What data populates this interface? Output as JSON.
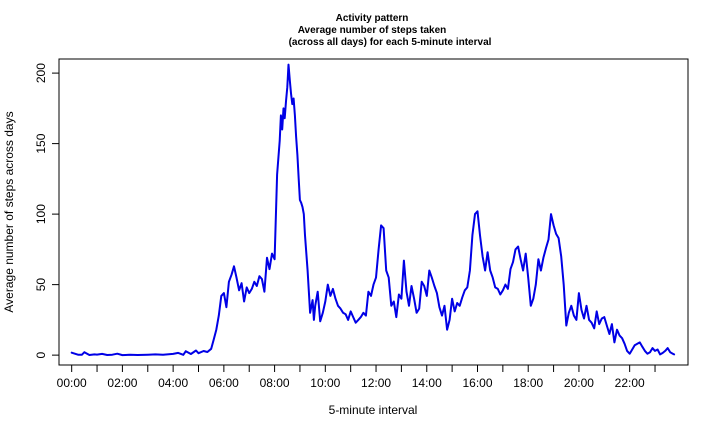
{
  "chart_data": {
    "type": "line",
    "title_lines": [
      "Activity pattern",
      "Average number of steps taken",
      "(across all days) for each 5-minute interval"
    ],
    "xlabel": "5-minute interval",
    "ylabel": "Average number of steps across days",
    "xlim": [
      -0.5,
      24.3
    ],
    "ylim": [
      -7,
      210
    ],
    "x_ticks": [
      "00:00",
      "02:00",
      "04:00",
      "06:00",
      "08:00",
      "10:00",
      "12:00",
      "14:00",
      "16:00",
      "18:00",
      "20:00",
      "22:00"
    ],
    "x_tick_values": [
      0,
      2,
      4,
      6,
      8,
      10,
      12,
      14,
      16,
      18,
      20,
      22
    ],
    "x_minor_tick_values": [
      1,
      3,
      5,
      7,
      9,
      11,
      13,
      15,
      17,
      19,
      21,
      23
    ],
    "y_ticks": [
      "0",
      "50",
      "100",
      "150",
      "200"
    ],
    "y_tick_values": [
      0,
      50,
      100,
      150,
      200
    ],
    "line_color": "#0000e6",
    "series": [
      {
        "x_unit": "hours since 00:00",
        "x": [
          0.0,
          0.25,
          0.4,
          0.5,
          0.7,
          0.9,
          1.0,
          1.2,
          1.4,
          1.6,
          1.8,
          2.0,
          2.3,
          2.6,
          3.0,
          3.3,
          3.6,
          4.0,
          4.2,
          4.4,
          4.5,
          4.7,
          4.9,
          5.0,
          5.2,
          5.35,
          5.5,
          5.6,
          5.7,
          5.8,
          5.9,
          6.0,
          6.1,
          6.2,
          6.3,
          6.4,
          6.5,
          6.6,
          6.7,
          6.8,
          6.9,
          7.0,
          7.1,
          7.2,
          7.3,
          7.4,
          7.5,
          7.6,
          7.7,
          7.8,
          7.9,
          8.0,
          8.1,
          8.2,
          8.25,
          8.3,
          8.35,
          8.4,
          8.45,
          8.5,
          8.55,
          8.6,
          8.65,
          8.7,
          8.75,
          8.8,
          8.85,
          8.9,
          8.95,
          9.0,
          9.05,
          9.1,
          9.15,
          9.2,
          9.3,
          9.4,
          9.5,
          9.55,
          9.6,
          9.7,
          9.8,
          9.9,
          10.0,
          10.1,
          10.2,
          10.3,
          10.4,
          10.5,
          10.6,
          10.7,
          10.8,
          10.9,
          11.0,
          11.1,
          11.2,
          11.3,
          11.4,
          11.5,
          11.6,
          11.7,
          11.8,
          11.9,
          12.0,
          12.1,
          12.2,
          12.3,
          12.4,
          12.5,
          12.6,
          12.7,
          12.8,
          12.9,
          13.0,
          13.1,
          13.2,
          13.3,
          13.4,
          13.5,
          13.6,
          13.7,
          13.8,
          13.9,
          14.0,
          14.1,
          14.2,
          14.3,
          14.4,
          14.5,
          14.6,
          14.7,
          14.8,
          14.9,
          15.0,
          15.1,
          15.2,
          15.3,
          15.4,
          15.5,
          15.6,
          15.7,
          15.8,
          15.9,
          16.0,
          16.1,
          16.2,
          16.3,
          16.4,
          16.5,
          16.6,
          16.7,
          16.8,
          16.9,
          17.0,
          17.1,
          17.2,
          17.3,
          17.4,
          17.5,
          17.6,
          17.7,
          17.8,
          17.9,
          18.0,
          18.1,
          18.2,
          18.3,
          18.4,
          18.5,
          18.6,
          18.7,
          18.8,
          18.9,
          19.0,
          19.1,
          19.2,
          19.3,
          19.4,
          19.5,
          19.6,
          19.7,
          19.8,
          19.9,
          20.0,
          20.1,
          20.2,
          20.3,
          20.4,
          20.5,
          20.6,
          20.7,
          20.8,
          20.9,
          21.0,
          21.1,
          21.2,
          21.3,
          21.4,
          21.5,
          21.6,
          21.7,
          21.8,
          21.9,
          22.0,
          22.1,
          22.2,
          22.3,
          22.4,
          22.5,
          22.6,
          22.7,
          22.8,
          22.9,
          23.0,
          23.1,
          23.2,
          23.3,
          23.4,
          23.5,
          23.6,
          23.7,
          23.75
        ],
        "y": [
          1.7,
          0.3,
          0.2,
          2.1,
          0.1,
          0.5,
          0.4,
          0.9,
          0.1,
          0.3,
          1.0,
          0.0,
          0.2,
          0.1,
          0.3,
          0.5,
          0.2,
          0.9,
          1.6,
          0.2,
          2.8,
          0.8,
          3.3,
          1.4,
          2.9,
          2.2,
          4.5,
          11.0,
          18.0,
          28.0,
          42.0,
          44.0,
          34.0,
          52.0,
          57.0,
          63.0,
          55.0,
          46.0,
          51.0,
          38.0,
          48.0,
          44.0,
          47.0,
          52.0,
          49.0,
          56.0,
          54.0,
          45.0,
          69.0,
          61.0,
          72.0,
          68.0,
          128.0,
          152.0,
          170.0,
          160.0,
          175.0,
          168.0,
          180.0,
          190.0,
          206.0,
          195.0,
          185.0,
          178.0,
          182.0,
          170.0,
          155.0,
          142.0,
          125.0,
          110.0,
          108.0,
          105.0,
          100.0,
          85.0,
          60.0,
          30.0,
          39.0,
          25.0,
          35.0,
          45.0,
          24.0,
          30.0,
          38.0,
          50.0,
          42.0,
          47.0,
          40.0,
          35.0,
          33.0,
          30.0,
          29.0,
          25.0,
          31.0,
          27.0,
          23.0,
          25.0,
          27.0,
          30.0,
          28.0,
          45.0,
          42.0,
          50.0,
          55.0,
          75.0,
          92.0,
          90.0,
          60.0,
          55.0,
          35.0,
          38.0,
          27.0,
          43.0,
          40.0,
          67.0,
          45.0,
          35.0,
          49.0,
          40.0,
          30.0,
          33.0,
          52.0,
          49.0,
          42.0,
          60.0,
          55.0,
          49.0,
          44.0,
          34.0,
          28.0,
          35.0,
          18.0,
          25.0,
          40.0,
          31.0,
          37.0,
          35.0,
          41.0,
          46.0,
          48.0,
          60.0,
          85.0,
          100.0,
          102.0,
          85.0,
          70.0,
          60.0,
          73.0,
          60.0,
          55.0,
          48.0,
          47.0,
          43.0,
          46.0,
          50.0,
          47.0,
          61.0,
          66.0,
          75.0,
          77.0,
          68.0,
          60.0,
          72.0,
          55.0,
          35.0,
          40.0,
          50.0,
          68.0,
          60.0,
          69.0,
          76.0,
          82.0,
          100.0,
          92.0,
          86.0,
          83.0,
          70.0,
          50.0,
          21.0,
          30.0,
          35.0,
          28.0,
          25.0,
          44.0,
          32.0,
          26.0,
          35.0,
          25.0,
          23.0,
          19.0,
          31.0,
          22.0,
          26.0,
          27.0,
          21.0,
          15.0,
          22.0,
          9.0,
          18.0,
          14.0,
          12.0,
          8.0,
          3.0,
          1.0,
          4.0,
          7.0,
          8.0,
          9.0,
          6.0,
          3.0,
          1.0,
          2.0,
          5.0,
          3.0,
          4.0,
          0.5,
          1.5,
          3.0,
          5.0,
          2.0,
          1.0,
          0.5
        ]
      }
    ]
  }
}
